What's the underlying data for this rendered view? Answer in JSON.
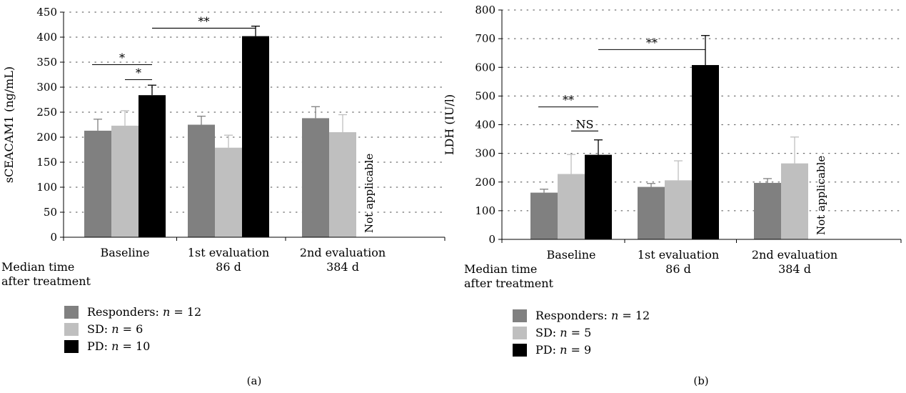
{
  "chart_data": [
    {
      "type": "bar",
      "panel_label": "(a)",
      "ylabel": "sCEACAM1 (ng/mL)",
      "ylim": [
        0,
        450
      ],
      "yticks": [
        0,
        50,
        100,
        150,
        200,
        250,
        300,
        350,
        400,
        450
      ],
      "grid": true,
      "categories": [
        {
          "line1": "Baseline",
          "line2": ""
        },
        {
          "line1": "1st evaluation",
          "line2": "86 d"
        },
        {
          "line1": "2nd evaluation",
          "line2": "384 d"
        }
      ],
      "xprefix": [
        "Median time",
        "after treatment"
      ],
      "series": [
        {
          "name": "Responders: n = 12",
          "legend_prefix": "Responders: ",
          "legend_n": "n",
          "legend_value": " = 12",
          "color": "#808080",
          "values": [
            213,
            225,
            238
          ],
          "errors": [
            23,
            17,
            23
          ]
        },
        {
          "name": "SD: n = 6",
          "legend_prefix": "SD: ",
          "legend_n": "n",
          "legend_value": " = 6",
          "color": "#bfbfbf",
          "values": [
            223,
            179,
            210
          ],
          "errors": [
            30,
            25,
            35
          ]
        },
        {
          "name": "PD: n = 10",
          "legend_prefix": "PD: ",
          "legend_n": "n",
          "legend_value": " = 10",
          "color": "#000000",
          "values": [
            284,
            402,
            null
          ],
          "errors": [
            20,
            20,
            null
          ]
        }
      ],
      "not_applicable": "Not applicable",
      "significance": [
        {
          "label": "*",
          "from": [
            0,
            0
          ],
          "to": [
            0,
            2
          ],
          "y": 345
        },
        {
          "label": "*",
          "from": [
            0,
            1
          ],
          "to": [
            0,
            2
          ],
          "y": 315
        },
        {
          "label": "**",
          "from": [
            0,
            2
          ],
          "to": [
            1,
            2
          ],
          "y": 418
        }
      ]
    },
    {
      "type": "bar",
      "panel_label": "(b)",
      "ylabel": "LDH (IU/l)",
      "ylim": [
        0,
        800
      ],
      "yticks": [
        0,
        100,
        200,
        300,
        400,
        500,
        600,
        700,
        800
      ],
      "grid": true,
      "categories": [
        {
          "line1": "Baseline",
          "line2": ""
        },
        {
          "line1": "1st evaluation",
          "line2": "86 d"
        },
        {
          "line1": "2nd evaluation",
          "line2": "384 d"
        }
      ],
      "xprefix": [
        "Median time",
        "after treatment"
      ],
      "series": [
        {
          "name": "Responders: n = 12",
          "legend_prefix": "Responders: ",
          "legend_n": "n",
          "legend_value": " = 12",
          "color": "#808080",
          "values": [
            163,
            183,
            197
          ],
          "errors": [
            12,
            12,
            15
          ]
        },
        {
          "name": "SD: n = 5",
          "legend_prefix": "SD: ",
          "legend_n": "n",
          "legend_value": " = 5",
          "color": "#bfbfbf",
          "values": [
            228,
            206,
            265
          ],
          "errors": [
            68,
            68,
            92
          ]
        },
        {
          "name": "PD: n = 9",
          "legend_prefix": "PD: ",
          "legend_n": "n",
          "legend_value": " = 9",
          "color": "#000000",
          "values": [
            295,
            608,
            null
          ],
          "errors": [
            52,
            103,
            null
          ]
        }
      ],
      "not_applicable": "Not applicable",
      "significance": [
        {
          "label": "**",
          "from": [
            0,
            0
          ],
          "to": [
            0,
            2
          ],
          "y": 462
        },
        {
          "label": "NS",
          "from": [
            0,
            1
          ],
          "to": [
            0,
            2
          ],
          "y": 378
        },
        {
          "label": "**",
          "from": [
            0,
            2
          ],
          "to": [
            1,
            2
          ],
          "y": 662
        }
      ]
    }
  ]
}
